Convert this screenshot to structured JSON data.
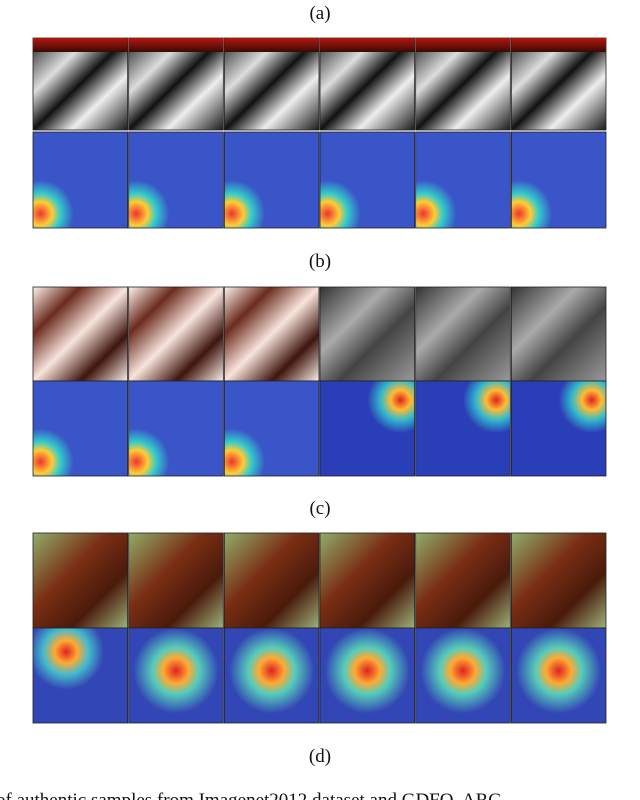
{
  "panels": [
    {
      "label": "(a)"
    },
    {
      "label": "(b)"
    },
    {
      "label": "(c)"
    },
    {
      "label": "(d)"
    }
  ],
  "caption": "of authentic samples from Imagenet2012 dataset and GDFQ, ARC"
}
